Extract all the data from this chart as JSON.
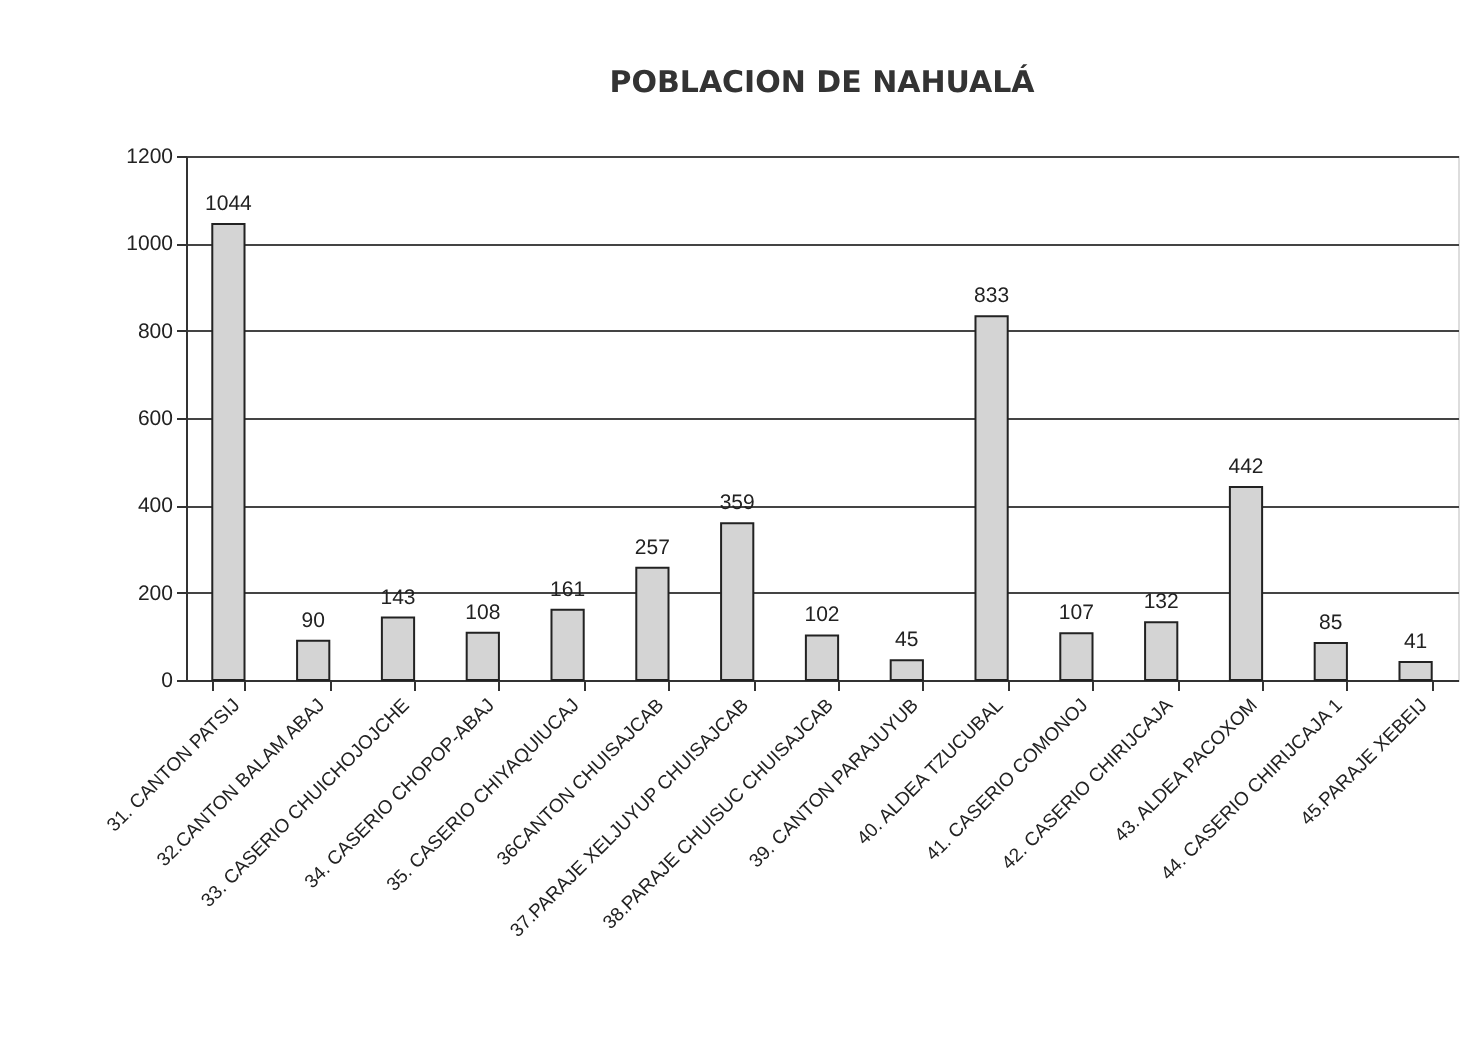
{
  "chart_data": {
    "type": "bar",
    "title": "POBLACION DE NAHUALÁ",
    "categories": [
      "31. CANTON PATSIJ",
      "32.CANTON  BALAM ABAJ",
      "33. CASERIO CHUICHOJOJCHE",
      "34. CASERIO CHOPOP-ABAJ",
      "35. CASERIO CHIYAQUIUCAJ",
      "36CANTON CHUISAJCAB",
      "37.PARAJE  XELJUYUP CHUISAJCAB",
      "38.PARAJE CHUISUC CHUISAJCAB",
      "39. CANTON PARAJUYUB",
      "40. ALDEA TZUCUBAL",
      "41. CASERIO COMONOJ",
      "42. CASERIO CHIRIJCAJA",
      "43. ALDEA PACOXOM",
      "44. CASERIO CHIRIJCAJA 1",
      "45.PARAJE XEBEIJ"
    ],
    "values": [
      1044,
      90,
      143,
      108,
      161,
      257,
      359,
      102,
      45,
      833,
      107,
      132,
      442,
      85,
      41
    ],
    "color": "#d4d4d4",
    "ylim": [
      0,
      1200
    ],
    "yticks": [
      0,
      200,
      400,
      600,
      800,
      1000,
      1200
    ],
    "grid": "y",
    "data_labels": true
  }
}
